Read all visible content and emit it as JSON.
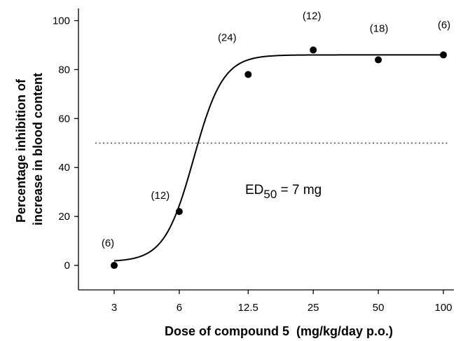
{
  "chart_data": {
    "type": "scatter",
    "xlabel": "Dose of compound 5  (mg/kg/day p.o.)",
    "ylabel_lines": [
      "Percentage inhibition of",
      "increase in blood content"
    ],
    "x_scale": "log2",
    "x_ticks": [
      3,
      6,
      12.5,
      25,
      50,
      100
    ],
    "x_tick_labels": [
      "3",
      "6",
      "12.5",
      "25",
      "50",
      "100"
    ],
    "ylim": [
      -10,
      105
    ],
    "y_ticks": [
      0,
      20,
      40,
      60,
      80,
      100
    ],
    "y_tick_labels": [
      "0",
      "20",
      "40",
      "60",
      "80",
      "100"
    ],
    "points": [
      {
        "x": 3,
        "y": 0,
        "n_label": "(6)"
      },
      {
        "x": 6,
        "y": 22,
        "n_label": "(12)"
      },
      {
        "x": 12.5,
        "y": 78,
        "n_label": "(24)"
      },
      {
        "x": 25,
        "y": 88,
        "n_label": "(12)"
      },
      {
        "x": 50,
        "y": 84,
        "n_label": "(18)"
      },
      {
        "x": 100,
        "y": 86,
        "n_label": "(6)"
      }
    ],
    "fit_curve": {
      "type": "sigmoid",
      "bottom": 1.5,
      "top": 86,
      "ed50": 7,
      "hill": 6.4
    },
    "reference_line_y": 50,
    "annotation": {
      "prefix": "ED",
      "subscript": "50",
      "suffix": " = 7 mg"
    },
    "grid": false,
    "legend": "none"
  }
}
